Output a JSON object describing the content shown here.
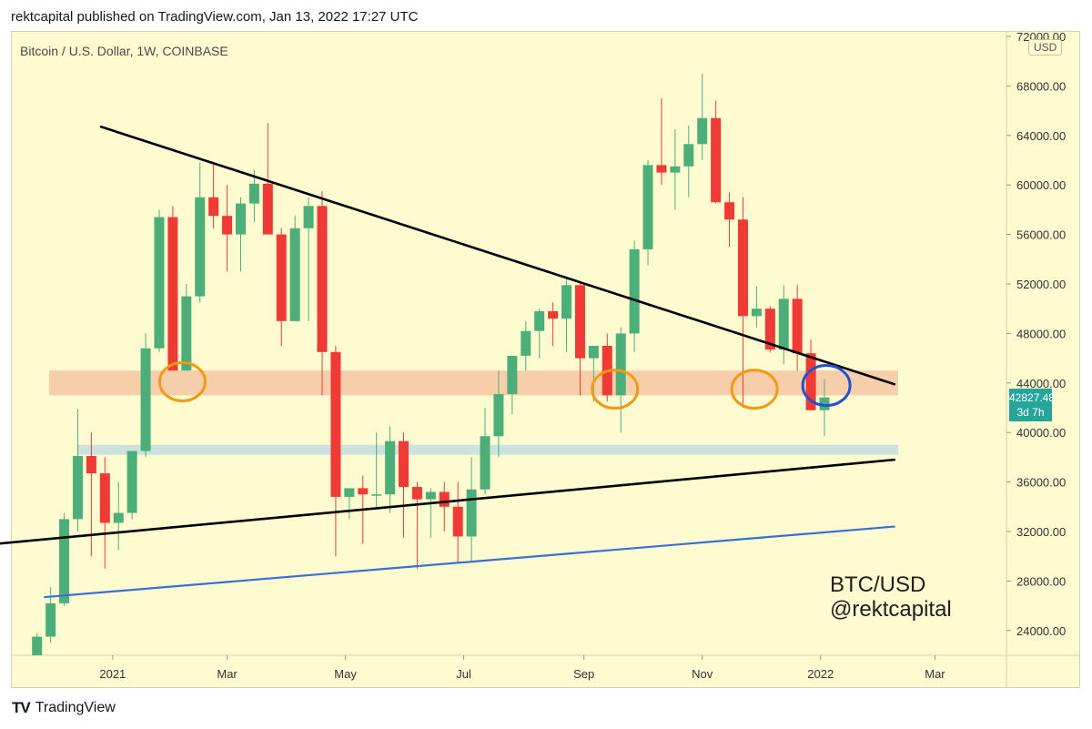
{
  "header": {
    "published": "rektcapital published on TradingView.com, Jan 13, 2022 17:27 UTC"
  },
  "symbol": {
    "title": "Bitcoin / U.S. Dollar, 1W, COINBASE",
    "currency": "USD"
  },
  "last_price": {
    "value": "42827.48",
    "countdown": "3d 7h"
  },
  "watermark": {
    "line1": "BTC/USD",
    "line2": "@rektcapital"
  },
  "footer": {
    "brand": "TradingView",
    "mark": "TV"
  },
  "colors": {
    "background": "#fdfbcf",
    "up": "#4caf7a",
    "down": "#ef3a36",
    "trendline": "#000000",
    "support_line": "#3b6fd8",
    "resistance_zone": "#f6c6a3",
    "support_zone": "#c6dfe0",
    "circle_orange": "#f39a12",
    "circle_blue": "#2450d6"
  },
  "chart_data": {
    "type": "candlestick",
    "title": "Bitcoin / U.S. Dollar, 1W, COINBASE",
    "x_ticks": [
      "2021",
      "Mar",
      "May",
      "Jul",
      "Sep",
      "Nov",
      "2022",
      "Mar"
    ],
    "y_ticks": [
      "24000.00",
      "28000.00",
      "32000.00",
      "36000.00",
      "40000.00",
      "44000.00",
      "48000.00",
      "52000.00",
      "56000.00",
      "60000.00",
      "64000.00",
      "68000.00",
      "72000.00"
    ],
    "ylim": [
      22000,
      73000
    ],
    "xlim": [
      "2020-11-10",
      "2022-03-28"
    ],
    "candles": [
      {
        "date": "2020-11-23",
        "o": 22000,
        "h": 23800,
        "l": 22000,
        "c": 23500
      },
      {
        "date": "2020-11-30",
        "o": 23500,
        "h": 27500,
        "l": 23000,
        "c": 26200
      },
      {
        "date": "2020-12-07",
        "o": 26200,
        "h": 33500,
        "l": 26000,
        "c": 33000
      },
      {
        "date": "2020-12-14",
        "o": 33000,
        "h": 41900,
        "l": 32000,
        "c": 38100
      },
      {
        "date": "2020-12-21",
        "o": 38100,
        "h": 40000,
        "l": 30000,
        "c": 36700
      },
      {
        "date": "2020-12-28",
        "o": 36700,
        "h": 38000,
        "l": 29000,
        "c": 32700
      },
      {
        "date": "2021-01-04",
        "o": 32700,
        "h": 36000,
        "l": 30500,
        "c": 33500
      },
      {
        "date": "2021-01-11",
        "o": 33500,
        "h": 38500,
        "l": 33000,
        "c": 38500
      },
      {
        "date": "2021-01-18",
        "o": 38500,
        "h": 48000,
        "l": 38000,
        "c": 46800
      },
      {
        "date": "2021-01-25",
        "o": 46800,
        "h": 58000,
        "l": 46500,
        "c": 57400
      },
      {
        "date": "2021-02-01",
        "o": 57400,
        "h": 58300,
        "l": 45000,
        "c": 45000
      },
      {
        "date": "2021-02-08",
        "o": 45000,
        "h": 52000,
        "l": 45000,
        "c": 51000
      },
      {
        "date": "2021-02-15",
        "o": 51000,
        "h": 61800,
        "l": 50500,
        "c": 59000
      },
      {
        "date": "2021-02-22",
        "o": 59000,
        "h": 61700,
        "l": 56500,
        "c": 57500
      },
      {
        "date": "2021-03-01",
        "o": 57500,
        "h": 60000,
        "l": 53000,
        "c": 56000
      },
      {
        "date": "2021-03-08",
        "o": 56000,
        "h": 59000,
        "l": 53000,
        "c": 58500
      },
      {
        "date": "2021-03-15",
        "o": 58500,
        "h": 61200,
        "l": 57000,
        "c": 60100
      },
      {
        "date": "2021-03-22",
        "o": 60100,
        "h": 65000,
        "l": 56000,
        "c": 56000
      },
      {
        "date": "2021-03-29",
        "o": 56000,
        "h": 56500,
        "l": 47000,
        "c": 49000
      },
      {
        "date": "2021-04-05",
        "o": 49000,
        "h": 57500,
        "l": 49000,
        "c": 56500
      },
      {
        "date": "2021-04-12",
        "o": 56500,
        "h": 59000,
        "l": 49000,
        "c": 58300
      },
      {
        "date": "2021-04-19",
        "o": 58300,
        "h": 59500,
        "l": 43000,
        "c": 46500
      },
      {
        "date": "2021-04-26",
        "o": 46500,
        "h": 47000,
        "l": 30000,
        "c": 34800
      },
      {
        "date": "2021-05-03",
        "o": 34800,
        "h": 35500,
        "l": 33000,
        "c": 35500
      },
      {
        "date": "2021-05-10",
        "o": 35500,
        "h": 36500,
        "l": 31000,
        "c": 35000
      },
      {
        "date": "2021-05-17",
        "o": 35000,
        "h": 40000,
        "l": 34000,
        "c": 35000
      },
      {
        "date": "2021-05-24",
        "o": 35000,
        "h": 40500,
        "l": 33500,
        "c": 39300
      },
      {
        "date": "2021-05-31",
        "o": 39300,
        "h": 40000,
        "l": 31500,
        "c": 35600
      },
      {
        "date": "2021-06-07",
        "o": 35600,
        "h": 36000,
        "l": 29000,
        "c": 34600
      },
      {
        "date": "2021-06-14",
        "o": 34600,
        "h": 35500,
        "l": 31500,
        "c": 35200
      },
      {
        "date": "2021-06-21",
        "o": 35200,
        "h": 36000,
        "l": 32000,
        "c": 34000
      },
      {
        "date": "2021-06-28",
        "o": 34000,
        "h": 36000,
        "l": 29500,
        "c": 31600
      },
      {
        "date": "2021-07-05",
        "o": 31600,
        "h": 38000,
        "l": 29500,
        "c": 35400
      },
      {
        "date": "2021-07-12",
        "o": 35400,
        "h": 42000,
        "l": 35000,
        "c": 39700
      },
      {
        "date": "2021-07-19",
        "o": 39700,
        "h": 45000,
        "l": 38000,
        "c": 43100
      },
      {
        "date": "2021-07-26",
        "o": 43100,
        "h": 46000,
        "l": 41500,
        "c": 46200
      },
      {
        "date": "2021-08-02",
        "o": 46200,
        "h": 49000,
        "l": 45000,
        "c": 48200
      },
      {
        "date": "2021-08-09",
        "o": 48200,
        "h": 50000,
        "l": 46000,
        "c": 49800
      },
      {
        "date": "2021-08-16",
        "o": 49800,
        "h": 50500,
        "l": 47000,
        "c": 49200
      },
      {
        "date": "2021-08-23",
        "o": 49200,
        "h": 52500,
        "l": 46500,
        "c": 51900
      },
      {
        "date": "2021-08-30",
        "o": 51900,
        "h": 52000,
        "l": 43000,
        "c": 46000
      },
      {
        "date": "2021-09-06",
        "o": 46000,
        "h": 47000,
        "l": 42500,
        "c": 47000
      },
      {
        "date": "2021-09-13",
        "o": 47000,
        "h": 48000,
        "l": 42500,
        "c": 43000
      },
      {
        "date": "2021-09-20",
        "o": 43000,
        "h": 48500,
        "l": 40000,
        "c": 48000
      },
      {
        "date": "2021-09-27",
        "o": 48000,
        "h": 55500,
        "l": 46500,
        "c": 54800
      },
      {
        "date": "2021-10-04",
        "o": 54800,
        "h": 62000,
        "l": 53500,
        "c": 61600
      },
      {
        "date": "2021-10-11",
        "o": 61600,
        "h": 67000,
        "l": 60000,
        "c": 61000
      },
      {
        "date": "2021-10-18",
        "o": 61000,
        "h": 64500,
        "l": 58000,
        "c": 61500
      },
      {
        "date": "2021-10-25",
        "o": 61500,
        "h": 64800,
        "l": 59000,
        "c": 63300
      },
      {
        "date": "2021-11-01",
        "o": 63300,
        "h": 69000,
        "l": 62000,
        "c": 65400
      },
      {
        "date": "2021-11-08",
        "o": 65400,
        "h": 66800,
        "l": 58500,
        "c": 58600
      },
      {
        "date": "2021-11-15",
        "o": 58600,
        "h": 59400,
        "l": 55000,
        "c": 57200
      },
      {
        "date": "2021-11-22",
        "o": 57200,
        "h": 59000,
        "l": 42000,
        "c": 49400
      },
      {
        "date": "2021-11-29",
        "o": 49400,
        "h": 51800,
        "l": 48500,
        "c": 50000
      },
      {
        "date": "2021-12-06",
        "o": 50000,
        "h": 50200,
        "l": 46500,
        "c": 46700
      },
      {
        "date": "2021-12-13",
        "o": 46700,
        "h": 51900,
        "l": 45500,
        "c": 50800
      },
      {
        "date": "2021-12-20",
        "o": 50800,
        "h": 51900,
        "l": 45000,
        "c": 46400
      },
      {
        "date": "2021-12-27",
        "o": 46400,
        "h": 47500,
        "l": 41800,
        "c": 41800
      },
      {
        "date": "2022-01-03",
        "o": 41800,
        "h": 44300,
        "l": 39700,
        "c": 42827
      }
    ],
    "trendlines": [
      {
        "name": "descending resistance",
        "from": {
          "date": "2020-12-26",
          "price": 64700
        },
        "to": {
          "date": "2022-02-08",
          "price": 43900
        }
      },
      {
        "name": "ascending support",
        "from": {
          "date": "2020-11-02",
          "price": 31000
        },
        "to": {
          "date": "2022-02-08",
          "price": 37800
        }
      },
      {
        "name": "blue support",
        "from": {
          "date": "2020-11-27",
          "price": 26700
        },
        "to": {
          "date": "2022-02-08",
          "price": 32400
        }
      }
    ],
    "zones": [
      {
        "name": "resistance zone",
        "y1": 43000,
        "y2": 45000,
        "from": "2020-11-10",
        "to": "2022-02-08"
      },
      {
        "name": "support zone",
        "y1": 38200,
        "y2": 39000,
        "from": "2020-11-24",
        "to": "2022-02-08"
      }
    ],
    "annotations": [
      {
        "name": "orange circle 1",
        "date": "2021-02-05",
        "price": 44100
      },
      {
        "name": "orange circle 2",
        "date": "2021-09-16",
        "price": 43500
      },
      {
        "name": "orange circle 3",
        "date": "2021-11-27",
        "price": 43500
      },
      {
        "name": "blue circle",
        "date": "2022-01-04",
        "price": 43800
      }
    ]
  }
}
